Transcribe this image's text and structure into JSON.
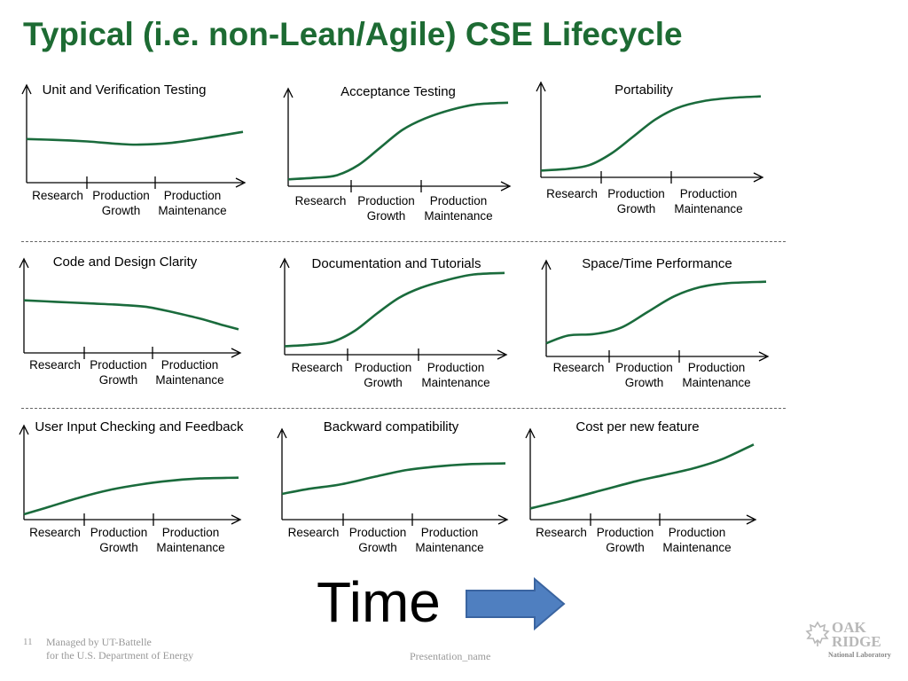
{
  "title": "Typical (i.e. non-Lean/Agile) CSE Lifecycle",
  "phase_labels": {
    "research": "Research",
    "growth_line1": "Production",
    "growth_line2": "Growth",
    "maintenance_line1": "Production",
    "maintenance_line2": "Maintenance"
  },
  "panels": [
    {
      "title": "Unit and Verification Testing",
      "curve": [
        [
          0,
          0.48
        ],
        [
          0.12,
          0.47
        ],
        [
          0.28,
          0.45
        ],
        [
          0.42,
          0.42
        ],
        [
          0.52,
          0.41
        ],
        [
          0.66,
          0.43
        ],
        [
          0.82,
          0.49
        ],
        [
          1,
          0.57
        ]
      ]
    },
    {
      "title": "Acceptance Testing",
      "curve": [
        [
          0,
          0.02
        ],
        [
          0.12,
          0.04
        ],
        [
          0.22,
          0.07
        ],
        [
          0.32,
          0.2
        ],
        [
          0.42,
          0.42
        ],
        [
          0.52,
          0.64
        ],
        [
          0.62,
          0.78
        ],
        [
          0.74,
          0.89
        ],
        [
          0.86,
          0.96
        ],
        [
          1,
          0.98
        ]
      ]
    },
    {
      "title": "Portability",
      "curve": [
        [
          0,
          0.02
        ],
        [
          0.12,
          0.04
        ],
        [
          0.22,
          0.09
        ],
        [
          0.32,
          0.24
        ],
        [
          0.42,
          0.46
        ],
        [
          0.52,
          0.68
        ],
        [
          0.62,
          0.83
        ],
        [
          0.74,
          0.92
        ],
        [
          0.86,
          0.96
        ],
        [
          1,
          0.98
        ]
      ]
    },
    {
      "title": "Code and Design Clarity",
      "curve": [
        [
          0,
          0.62
        ],
        [
          0.15,
          0.6
        ],
        [
          0.3,
          0.58
        ],
        [
          0.45,
          0.56
        ],
        [
          0.58,
          0.53
        ],
        [
          0.7,
          0.46
        ],
        [
          0.82,
          0.38
        ],
        [
          0.92,
          0.3
        ],
        [
          1,
          0.24
        ]
      ]
    },
    {
      "title": "Documentation and Tutorials",
      "curve": [
        [
          0,
          0.04
        ],
        [
          0.12,
          0.06
        ],
        [
          0.22,
          0.1
        ],
        [
          0.32,
          0.24
        ],
        [
          0.42,
          0.46
        ],
        [
          0.52,
          0.66
        ],
        [
          0.62,
          0.79
        ],
        [
          0.74,
          0.89
        ],
        [
          0.86,
          0.96
        ],
        [
          1,
          0.98
        ]
      ]
    },
    {
      "title": "Space/Time Performance",
      "curve": [
        [
          0,
          0.1
        ],
        [
          0.1,
          0.2
        ],
        [
          0.22,
          0.22
        ],
        [
          0.34,
          0.3
        ],
        [
          0.46,
          0.5
        ],
        [
          0.58,
          0.7
        ],
        [
          0.7,
          0.82
        ],
        [
          0.82,
          0.87
        ],
        [
          1,
          0.89
        ]
      ]
    },
    {
      "title": "User Input Checking and Feedback",
      "curve": [
        [
          0,
          0.0
        ],
        [
          0.12,
          0.1
        ],
        [
          0.26,
          0.22
        ],
        [
          0.4,
          0.32
        ],
        [
          0.54,
          0.39
        ],
        [
          0.68,
          0.44
        ],
        [
          0.82,
          0.47
        ],
        [
          1,
          0.48
        ]
      ]
    },
    {
      "title": "Backward compatibility",
      "curve": [
        [
          0,
          0.28
        ],
        [
          0.12,
          0.35
        ],
        [
          0.26,
          0.41
        ],
        [
          0.42,
          0.52
        ],
        [
          0.56,
          0.61
        ],
        [
          0.7,
          0.66
        ],
        [
          0.84,
          0.69
        ],
        [
          1,
          0.7
        ]
      ]
    },
    {
      "title": "Cost per new feature",
      "curve": [
        [
          0,
          0.08
        ],
        [
          0.16,
          0.2
        ],
        [
          0.32,
          0.33
        ],
        [
          0.48,
          0.46
        ],
        [
          0.6,
          0.54
        ],
        [
          0.74,
          0.64
        ],
        [
          0.86,
          0.76
        ],
        [
          1,
          0.96
        ]
      ]
    }
  ],
  "time_label": "Time",
  "footer": {
    "slide_number": "11",
    "managed_line1": "Managed by UT-Battelle",
    "managed_line2": "for the U.S. Department of Energy",
    "presentation_name": "Presentation_name"
  },
  "logo": {
    "line1": "OAK",
    "line2": "RIDGE",
    "line3": "National Laboratory"
  },
  "colors": {
    "title": "#1d6b33",
    "curve": "#1a6b3c",
    "arrow_fill": "#4f7fc0",
    "arrow_stroke": "#3a64a0"
  }
}
